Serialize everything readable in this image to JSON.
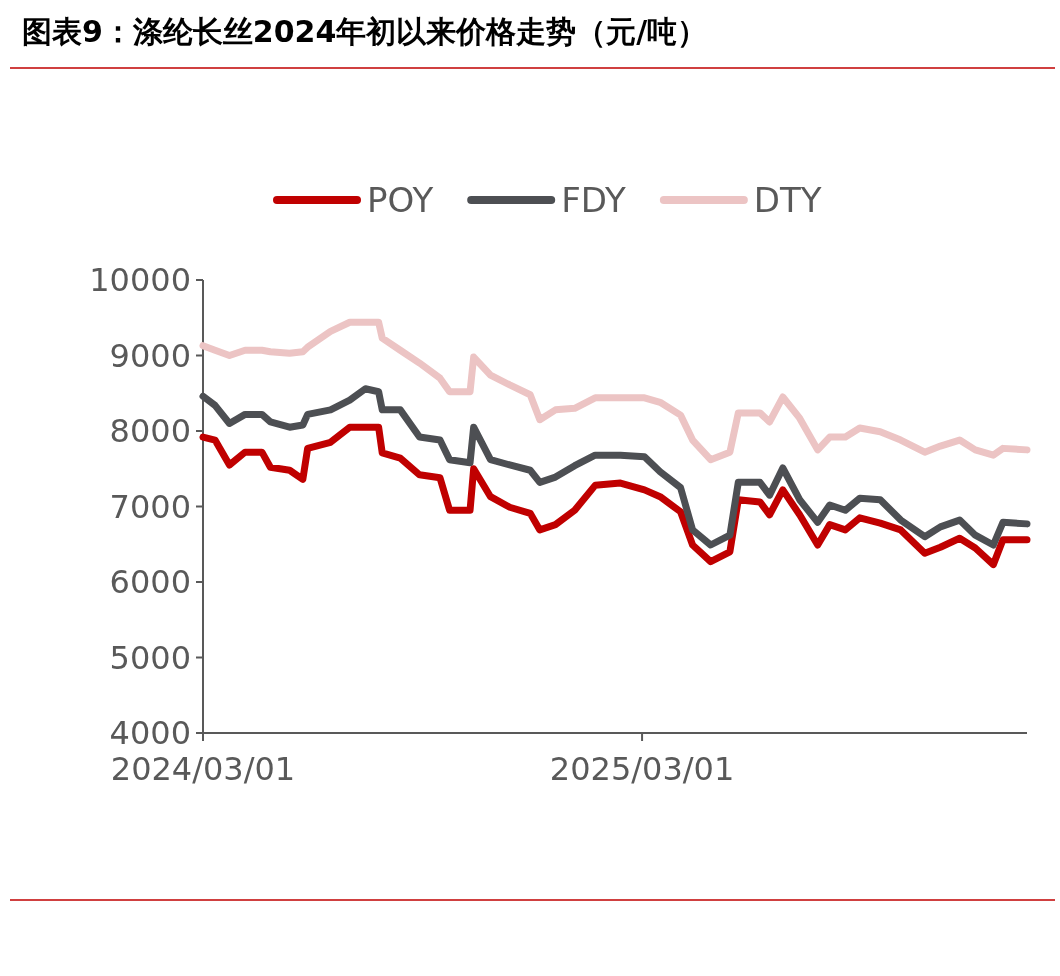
{
  "chart_data": {
    "type": "line",
    "title": "图表9：涤纶长丝2024年初以来价格走势（元/吨）",
    "x": [
      "2024-03-01",
      "2024-03-11",
      "2024-03-23",
      "2024-04-05",
      "2024-04-19",
      "2024-04-26",
      "2024-05-12",
      "2024-05-23",
      "2024-05-27",
      "2024-06-15",
      "2024-07-01",
      "2024-07-14",
      "2024-07-25",
      "2024-07-28",
      "2024-08-12",
      "2024-08-28",
      "2024-09-14",
      "2024-09-22",
      "2024-10-09",
      "2024-10-12",
      "2024-10-26",
      "2024-11-11",
      "2024-11-28",
      "2024-12-06",
      "2024-12-19",
      "2025-01-04",
      "2025-01-21",
      "2025-02-11",
      "2025-03-03",
      "2025-03-16",
      "2025-04-02",
      "2025-04-12",
      "2025-04-27",
      "2025-05-13",
      "2025-05-20",
      "2025-06-07",
      "2025-06-15",
      "2025-06-26",
      "2025-07-10",
      "2025-07-25",
      "2025-08-04",
      "2025-08-17",
      "2025-08-29",
      "2025-09-15",
      "2025-10-02",
      "2025-10-22",
      "2025-11-04",
      "2025-11-20",
      "2025-12-03",
      "2025-12-18",
      "2025-12-26",
      "2026-01-15"
    ],
    "series": [
      {
        "name": "POY",
        "color": "#c00000",
        "values": [
          7920,
          7880,
          7550,
          7720,
          7720,
          7520,
          7480,
          7360,
          7770,
          7850,
          8050,
          8050,
          8050,
          7710,
          7640,
          7420,
          7380,
          6950,
          6950,
          7500,
          7130,
          6990,
          6910,
          6690,
          6760,
          6950,
          7280,
          7310,
          7220,
          7130,
          6930,
          6490,
          6270,
          6400,
          7090,
          7060,
          6890,
          7220,
          6890,
          6490,
          6760,
          6690,
          6850,
          6780,
          6690,
          6380,
          6460,
          6580,
          6450,
          6230,
          6560,
          6560
        ]
      },
      {
        "name": "FDY",
        "color": "#4d4f53",
        "values": [
          8460,
          8340,
          8100,
          8220,
          8220,
          8120,
          8050,
          8080,
          8220,
          8280,
          8410,
          8560,
          8520,
          8280,
          8280,
          7920,
          7880,
          7620,
          7580,
          8050,
          7620,
          7550,
          7480,
          7320,
          7390,
          7540,
          7680,
          7680,
          7660,
          7460,
          7250,
          6690,
          6490,
          6620,
          7320,
          7320,
          7150,
          7510,
          7090,
          6790,
          7020,
          6950,
          7110,
          7090,
          6820,
          6600,
          6730,
          6820,
          6620,
          6490,
          6790,
          6770
        ]
      },
      {
        "name": "DTY",
        "color": "#ecc4c4",
        "values": [
          9130,
          9070,
          9000,
          9070,
          9070,
          9050,
          9030,
          9050,
          9110,
          9320,
          9440,
          9440,
          9440,
          9230,
          9070,
          8900,
          8700,
          8520,
          8520,
          8980,
          8740,
          8610,
          8480,
          8150,
          8280,
          8300,
          8440,
          8440,
          8440,
          8380,
          8210,
          7880,
          7620,
          7720,
          8240,
          8240,
          8120,
          8450,
          8170,
          7750,
          7920,
          7920,
          8040,
          7990,
          7880,
          7720,
          7800,
          7880,
          7750,
          7680,
          7770,
          7750
        ]
      }
    ],
    "xlim": [
      "2024-03-01",
      "2026-01-15"
    ],
    "xticks": [
      {
        "value": "2024-03-01",
        "label": "2024/03/01"
      },
      {
        "value": "2025-03-01",
        "label": "2025/03/01"
      }
    ],
    "ylim": [
      4000,
      10000
    ],
    "yticks": [
      4000,
      5000,
      6000,
      7000,
      8000,
      9000,
      10000
    ],
    "grid": false,
    "legend": "top",
    "marker": "none",
    "line_style": "solid"
  }
}
